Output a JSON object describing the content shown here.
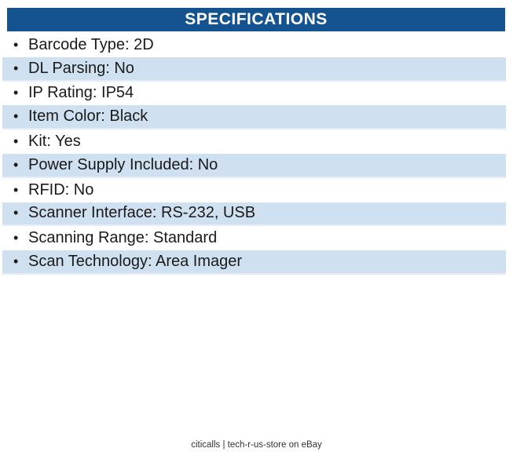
{
  "colors": {
    "header_bg": "#14538F",
    "header_text": "#FFFFFF",
    "row_alt_bg": "#CFE0F1",
    "row_alt_border": "#E2EDF7",
    "body_text": "#1A1A1A",
    "footer_text": "#333333"
  },
  "specifications": {
    "title": "SPECIFICATIONS",
    "bullet": "•",
    "colon_separator": ": ",
    "items": [
      {
        "label": "Barcode Type",
        "value": "2D"
      },
      {
        "label": "DL Parsing",
        "value": "No"
      },
      {
        "label": "IP Rating",
        "value": "IP54"
      },
      {
        "label": "Item Color",
        "value": "Black"
      },
      {
        "label": "Kit",
        "value": "Yes"
      },
      {
        "label": "Power Supply Included",
        "value": "No"
      },
      {
        "label": "RFID",
        "value": "No"
      },
      {
        "label": "Scanner Interface",
        "value": "RS-232, USB"
      },
      {
        "label": "Scanning Range",
        "value": "Standard"
      },
      {
        "label": "Scan Technology",
        "value": "Area Imager"
      }
    ]
  },
  "footer": {
    "text": "citicalls | tech-r-us-store on eBay"
  }
}
